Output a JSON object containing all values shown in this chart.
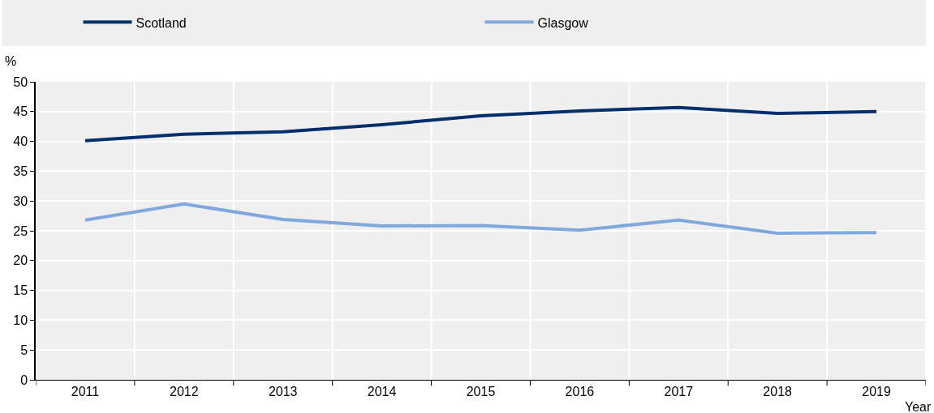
{
  "chart_data": {
    "type": "line",
    "xlabel": "Year",
    "ylabel": "%",
    "categories": [
      "2011",
      "2012",
      "2013",
      "2014",
      "2015",
      "2016",
      "2017",
      "2018",
      "2019"
    ],
    "series": [
      {
        "name": "Scotland",
        "color": "#002f6c",
        "values": [
          40.1,
          41.2,
          41.6,
          42.8,
          44.3,
          45.1,
          45.7,
          44.7,
          45.0
        ]
      },
      {
        "name": "Glasgow",
        "color": "#7fa8dc",
        "values": [
          26.8,
          29.5,
          26.9,
          25.8,
          25.9,
          25.1,
          26.8,
          24.6,
          24.7
        ]
      }
    ],
    "ylim": [
      0,
      50
    ],
    "yticks": [
      0,
      5,
      10,
      15,
      20,
      25,
      30,
      35,
      40,
      45,
      50
    ],
    "grid": true,
    "legend": "top",
    "marker": "none",
    "line_style": "solid"
  }
}
